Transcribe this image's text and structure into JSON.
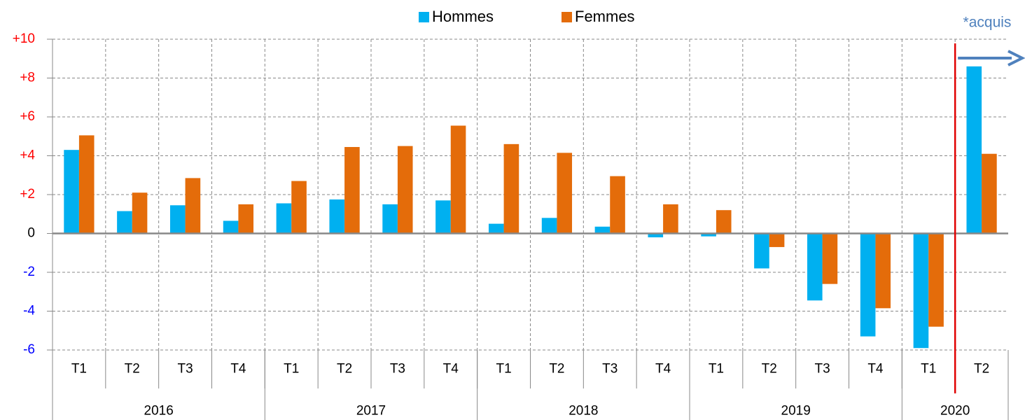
{
  "chart_data": {
    "type": "bar",
    "groups": [
      {
        "label": "2016",
        "categories": [
          "T1",
          "T2",
          "T3",
          "T4"
        ]
      },
      {
        "label": "2017",
        "categories": [
          "T1",
          "T2",
          "T3",
          "T4"
        ]
      },
      {
        "label": "2018",
        "categories": [
          "T1",
          "T2",
          "T3",
          "T4"
        ]
      },
      {
        "label": "2019",
        "categories": [
          "T1",
          "T2",
          "T3",
          "T4"
        ]
      },
      {
        "label": "2020",
        "categories": [
          "T1",
          "T2"
        ]
      }
    ],
    "series": [
      {
        "name": "Hommes",
        "color": "#00b0f0",
        "values": [
          4.3,
          1.15,
          1.45,
          0.65,
          1.55,
          1.75,
          1.5,
          1.7,
          0.5,
          0.8,
          0.35,
          -0.2,
          -0.15,
          -1.8,
          -3.45,
          -5.3,
          -5.9,
          8.6
        ]
      },
      {
        "name": "Femmes",
        "color": "#e46c0a",
        "values": [
          5.05,
          2.1,
          2.85,
          1.5,
          2.7,
          4.45,
          4.5,
          5.55,
          4.6,
          4.15,
          2.95,
          1.5,
          1.2,
          -0.7,
          -2.6,
          -3.85,
          -4.8,
          4.1
        ]
      }
    ],
    "ylim": [
      -6,
      10
    ],
    "yticks": [
      {
        "value": 10,
        "label": "+10"
      },
      {
        "value": 8,
        "label": "+8"
      },
      {
        "value": 6,
        "label": "+6"
      },
      {
        "value": 4,
        "label": "+4"
      },
      {
        "value": 2,
        "label": "+2"
      },
      0,
      -2,
      -4,
      -6
    ],
    "positive_tick_color": "#ff0000",
    "negative_tick_color": "#0000ff",
    "grid": true,
    "annotation": {
      "text": "*acquis",
      "color": "#4f81bd",
      "line_color": "#e00000"
    }
  }
}
